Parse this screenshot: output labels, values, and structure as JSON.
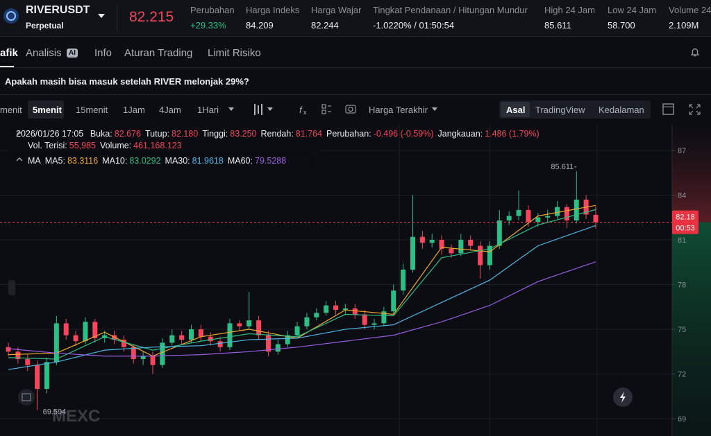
{
  "header": {
    "symbol": "RIVERUSDT",
    "contract": "Perpetual",
    "last_price": "82.215",
    "stats": [
      {
        "label": "Perubahan",
        "value": "+29.33%"
      },
      {
        "label": "Harga Indeks",
        "value": "84.209"
      },
      {
        "label": "Harga Wajar",
        "value": "82.244"
      },
      {
        "label": "Tingkat Pendanaan / Hitungan Mundur",
        "value": "-1.0220% / 01:50:54"
      },
      {
        "label": "High 24 Jam",
        "value": "85.611"
      },
      {
        "label": "Low 24 Jam",
        "value": "58.700"
      },
      {
        "label": "Volume 24",
        "value": "2.109M"
      }
    ]
  },
  "tabs": [
    "afik",
    "Analisis",
    "Info",
    "Aturan Trading",
    "Limit Risiko"
  ],
  "ai_badge": "AI",
  "headline": "Apakah masih bisa masuk setelah RIVER melonjak 29%?",
  "toolbar": {
    "intervals": [
      "menit",
      "5menit",
      "15menit",
      "1Jam",
      "4Jam",
      "1Hari"
    ],
    "price_type": "Harga Terakhir",
    "views": [
      "Asal",
      "TradingView",
      "Kedalaman"
    ]
  },
  "legend": {
    "date": "2026/01/26 17:05",
    "ohlc": [
      {
        "label": "Buka:",
        "value": "82.676"
      },
      {
        "label": "Tutup:",
        "value": "82.180"
      },
      {
        "label": "Tinggi:",
        "value": "83.250"
      },
      {
        "label": "Rendah:",
        "value": "81.764"
      },
      {
        "label": "Perubahan:",
        "value": "-0.496 (-0.59%)"
      },
      {
        "label": "Jangkauan:",
        "value": "1.486 (1.79%)"
      }
    ],
    "volume": [
      {
        "label": "Vol. Terisi:",
        "value": "55,985"
      },
      {
        "label": "Volume:",
        "value": "461,168.123"
      }
    ],
    "ma_label": "MA",
    "ma": [
      {
        "label": "MA5:",
        "value": "83.3116",
        "color": "#f0a92e"
      },
      {
        "label": "MA10:",
        "value": "83.0292",
        "color": "#2ebd85"
      },
      {
        "label": "MA30:",
        "value": "81.9618",
        "color": "#4fb8e8"
      },
      {
        "label": "MA60:",
        "value": "79.5288",
        "color": "#9b5de5"
      }
    ]
  },
  "watermark": "MEXC",
  "chart": {
    "type": "candlestick",
    "ylim": [
      67.84,
      88.72
    ],
    "yticks": [
      69,
      72,
      75,
      78,
      81,
      84,
      87
    ],
    "up_color": "#2ebd85",
    "down_color": "#f6465d",
    "open": [
      73.8,
      73.5,
      73.0,
      72.6,
      71.0,
      72.8,
      75.4,
      74.6,
      74.2,
      75.5,
      74.4,
      74.6,
      74.3,
      73.8,
      73.0,
      73.2,
      72.6,
      74.1,
      74.6,
      74.3,
      75.0,
      74.5,
      74.2,
      73.8,
      75.4,
      75.2,
      75.6,
      74.6,
      73.5,
      74.0,
      74.6,
      75.2,
      75.8,
      76.1,
      76.6,
      76.3,
      76.4,
      76.0,
      75.3,
      75.4,
      76.2,
      77.6,
      79.0,
      81.2,
      80.8,
      81.0,
      80.4,
      80.1,
      81.0,
      80.6,
      79.3,
      80.6,
      82.3,
      82.6,
      83.0,
      82.2,
      82.5,
      82.6,
      83.2,
      82.3,
      83.7,
      82.676
    ],
    "high": [
      74.1,
      73.8,
      73.3,
      72.9,
      73.1,
      75.9,
      75.7,
      74.9,
      75.8,
      75.7,
      74.9,
      74.9,
      74.6,
      74.0,
      73.5,
      73.5,
      74.4,
      75.0,
      74.9,
      75.3,
      75.3,
      74.8,
      74.5,
      75.7,
      75.6,
      77.5,
      75.9,
      74.9,
      74.3,
      74.9,
      75.5,
      76.1,
      76.4,
      76.9,
      76.9,
      76.7,
      76.7,
      76.3,
      75.7,
      76.5,
      78.0,
      79.4,
      84.0,
      81.6,
      81.4,
      81.3,
      80.7,
      81.4,
      81.3,
      80.9,
      80.9,
      83.0,
      82.9,
      84.3,
      83.3,
      82.8,
      83.0,
      83.6,
      83.4,
      85.611,
      84.0,
      83.25
    ],
    "low": [
      73.2,
      72.7,
      72.2,
      69.594,
      70.7,
      72.6,
      74.3,
      73.9,
      74.0,
      74.1,
      74.1,
      74.0,
      73.5,
      72.7,
      72.6,
      72.0,
      72.4,
      73.9,
      74.0,
      74.1,
      74.2,
      73.9,
      73.5,
      73.6,
      74.9,
      75.0,
      74.3,
      73.2,
      73.3,
      73.8,
      74.4,
      75.0,
      75.6,
      75.9,
      76.0,
      76.0,
      75.7,
      75.0,
      75.0,
      75.2,
      76.0,
      77.3,
      78.8,
      80.4,
      80.5,
      80.0,
      79.8,
      79.9,
      80.3,
      78.4,
      79.0,
      80.4,
      82.0,
      82.3,
      81.9,
      81.9,
      82.2,
      82.4,
      81.8,
      82.1,
      82.4,
      81.764
    ],
    "close": [
      73.5,
      73.0,
      72.6,
      71.0,
      72.8,
      75.4,
      74.6,
      74.2,
      75.5,
      74.4,
      74.6,
      74.3,
      73.8,
      73.0,
      73.2,
      72.6,
      74.1,
      74.6,
      74.3,
      75.0,
      74.5,
      74.2,
      73.8,
      75.4,
      75.2,
      75.6,
      74.6,
      73.5,
      74.0,
      74.6,
      75.2,
      75.8,
      76.1,
      76.6,
      76.3,
      76.4,
      76.0,
      75.3,
      75.4,
      76.2,
      77.6,
      79.0,
      81.2,
      80.8,
      81.0,
      80.4,
      80.1,
      81.0,
      80.6,
      79.3,
      80.6,
      82.3,
      82.6,
      83.0,
      82.2,
      82.5,
      82.6,
      83.2,
      82.3,
      83.7,
      82.7,
      82.18
    ],
    "ma_x": [
      0,
      5,
      10,
      15,
      20,
      25,
      30,
      35,
      40,
      45,
      50,
      55,
      61
    ],
    "ma_lines": [
      {
        "color": "#f0a92e",
        "values": [
          73.3,
          73.4,
          74.8,
          73.2,
          74.5,
          75.0,
          74.4,
          76.3,
          76.0,
          80.5,
          80.2,
          82.6,
          83.3116
        ]
      },
      {
        "color": "#2ebd85",
        "values": [
          73.1,
          73.0,
          74.5,
          73.6,
          74.2,
          74.7,
          74.5,
          76.0,
          75.9,
          79.8,
          80.4,
          82.0,
          83.0292
        ]
      },
      {
        "color": "#4fb8e8",
        "values": [
          72.3,
          72.8,
          73.6,
          73.8,
          73.9,
          74.3,
          74.4,
          75.0,
          75.3,
          76.8,
          78.3,
          80.6,
          81.9618
        ]
      },
      {
        "color": "#9b5de5",
        "values": [
          73.7,
          73.4,
          73.2,
          73.2,
          73.3,
          73.5,
          73.8,
          74.2,
          74.6,
          75.5,
          76.6,
          78.2,
          79.5288
        ]
      }
    ],
    "current_price": 82.18,
    "countdown": "00:53",
    "high_marker": 85.611,
    "low_marker": 69.594
  }
}
